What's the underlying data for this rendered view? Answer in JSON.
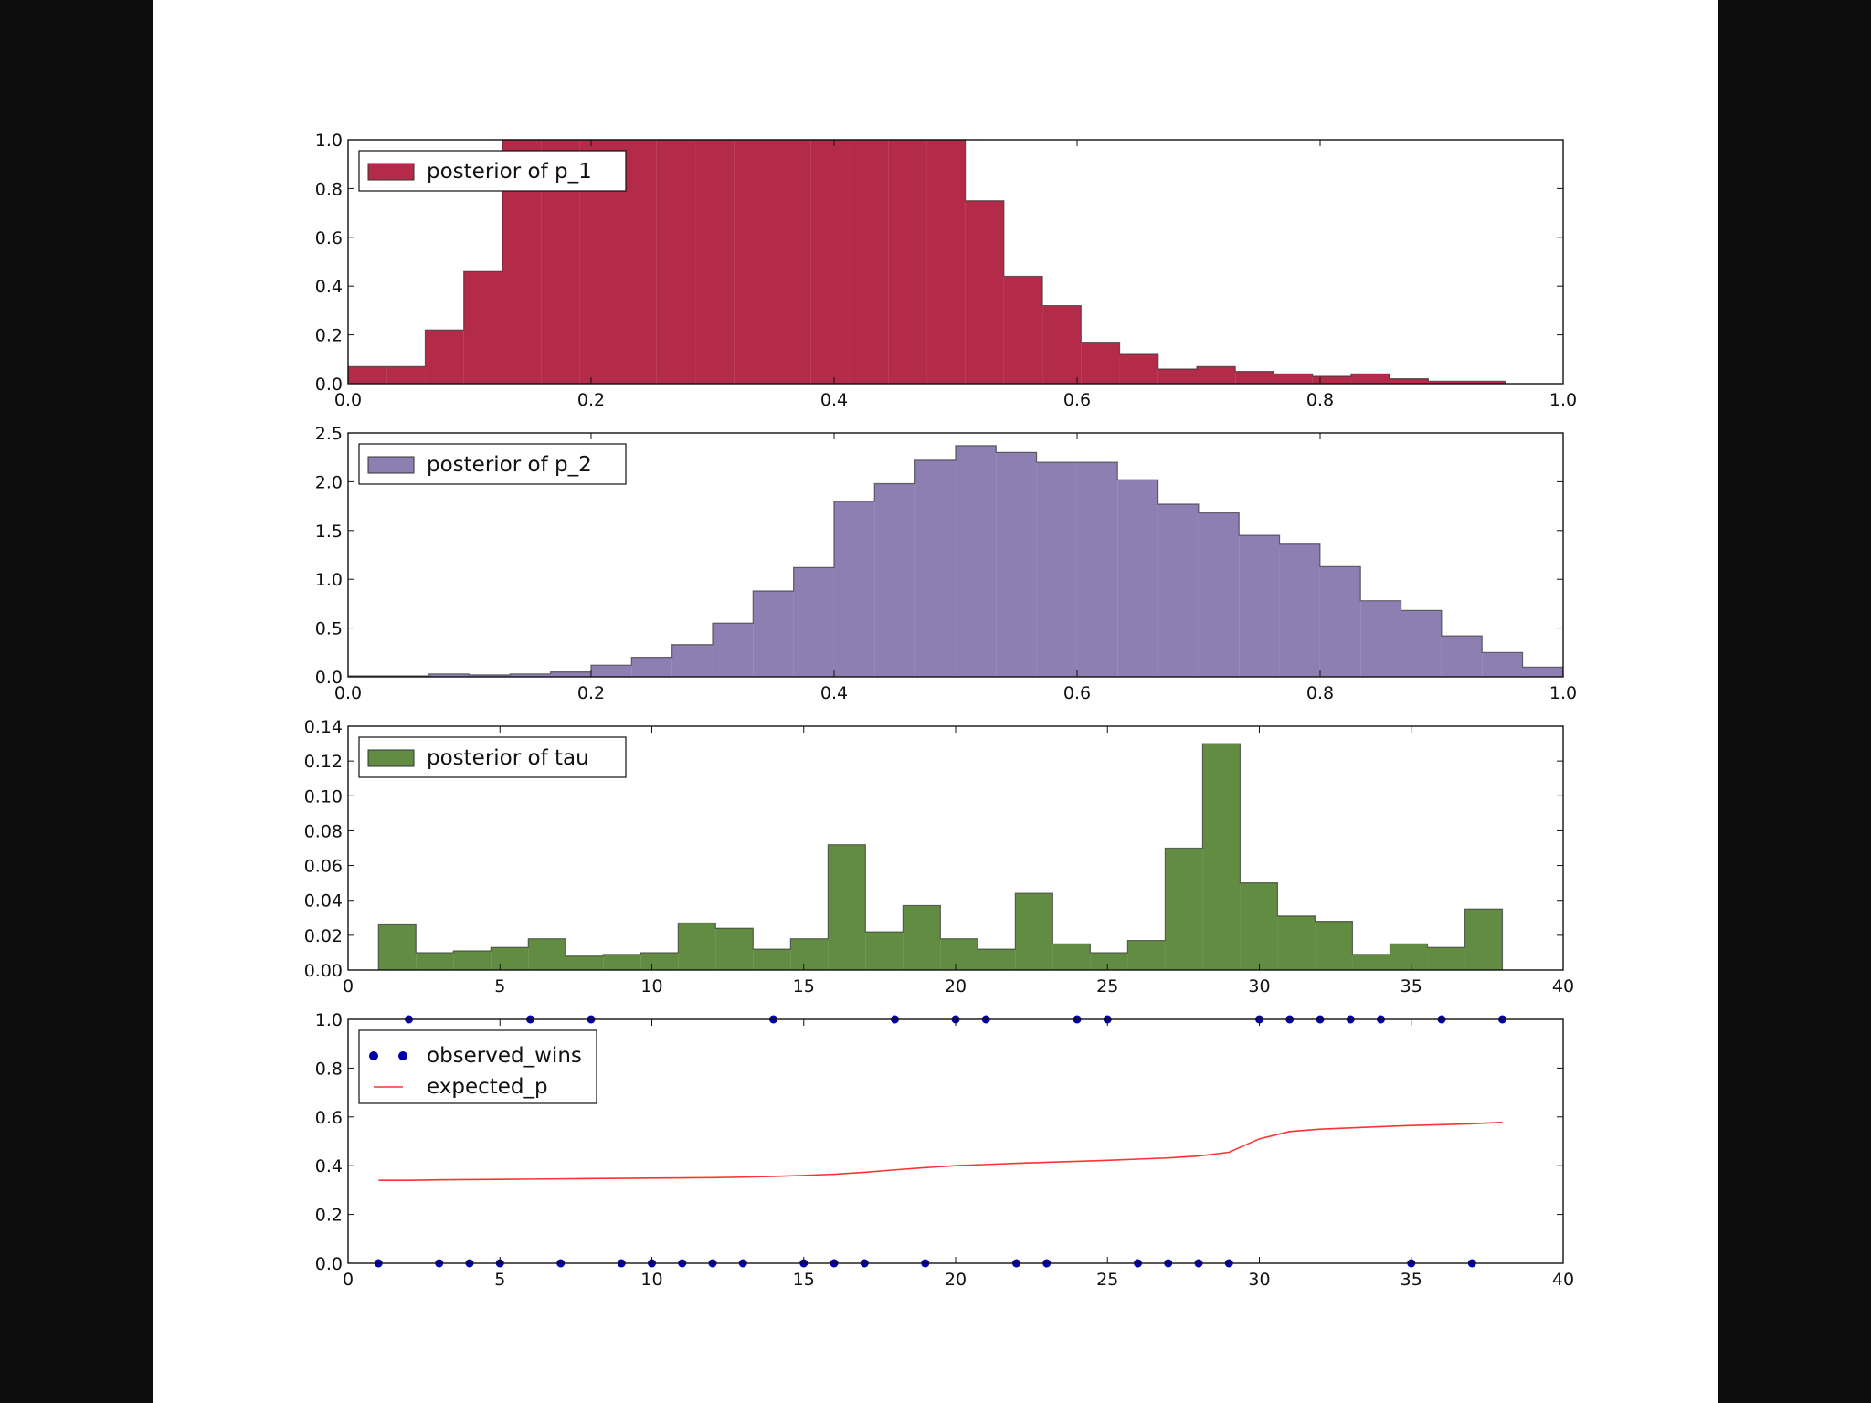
{
  "figure": {
    "background": "#ffffff",
    "frame_background": "#0d0d0d"
  },
  "chart_data": [
    {
      "type": "bar",
      "name": "p1",
      "legend": "posterior of p_1",
      "color": "#A60628",
      "bin_edges_start": 0.0,
      "bin_width": 0.03175,
      "values": [
        0.07,
        0.07,
        0.22,
        0.46,
        1.0,
        1.0,
        1.0,
        1.0,
        1.0,
        1.0,
        1.0,
        1.0,
        1.0,
        1.0,
        1.0,
        1.0,
        0.75,
        0.44,
        0.32,
        0.17,
        0.12,
        0.06,
        0.07,
        0.05,
        0.04,
        0.03,
        0.04,
        0.02,
        0.01,
        0.01
      ],
      "xlim": [
        0.0,
        1.0
      ],
      "ylim": [
        0.0,
        1.0
      ],
      "xticks": [
        "0.0",
        "0.2",
        "0.4",
        "0.6",
        "0.8",
        "1.0"
      ],
      "yticks": [
        "0.0",
        "0.2",
        "0.4",
        "0.6",
        "0.8",
        "1.0"
      ],
      "xtick_values": [
        0.0,
        0.2,
        0.4,
        0.6,
        0.8,
        1.0
      ],
      "ytick_values": [
        0.0,
        0.2,
        0.4,
        0.6,
        0.8,
        1.0
      ],
      "legend_position": "upper left"
    },
    {
      "type": "bar",
      "name": "p2",
      "legend": "posterior of p_2",
      "color": "#7A68A6",
      "bin_edges_start": 0.0,
      "bin_width": 0.03333,
      "values": [
        0.01,
        0.01,
        0.03,
        0.02,
        0.03,
        0.05,
        0.12,
        0.2,
        0.33,
        0.55,
        0.88,
        1.12,
        1.8,
        1.98,
        2.22,
        2.37,
        2.3,
        2.2,
        2.2,
        2.02,
        1.77,
        1.68,
        1.45,
        1.36,
        1.13,
        0.78,
        0.68,
        0.42,
        0.25,
        0.1
      ],
      "xlim": [
        0.0,
        1.0
      ],
      "ylim": [
        0.0,
        2.5
      ],
      "xticks": [
        "0.0",
        "0.2",
        "0.4",
        "0.6",
        "0.8",
        "1.0"
      ],
      "yticks": [
        "0.0",
        "0.5",
        "1.0",
        "1.5",
        "2.0",
        "2.5"
      ],
      "xtick_values": [
        0.0,
        0.2,
        0.4,
        0.6,
        0.8,
        1.0
      ],
      "ytick_values": [
        0.0,
        0.5,
        1.0,
        1.5,
        2.0,
        2.5
      ],
      "legend_position": "upper left"
    },
    {
      "type": "bar",
      "name": "tau",
      "legend": "posterior of tau",
      "color": "#467821",
      "bin_edges_start": 1.0,
      "bin_width": 1.2333,
      "values": [
        0.026,
        0.01,
        0.011,
        0.013,
        0.018,
        0.008,
        0.009,
        0.01,
        0.027,
        0.024,
        0.012,
        0.018,
        0.072,
        0.022,
        0.037,
        0.018,
        0.012,
        0.044,
        0.015,
        0.01,
        0.017,
        0.07,
        0.13,
        0.05,
        0.031,
        0.028,
        0.009,
        0.015,
        0.013,
        0.035
      ],
      "xlim": [
        0,
        40
      ],
      "ylim": [
        0.0,
        0.14
      ],
      "xticks": [
        "0",
        "5",
        "10",
        "15",
        "20",
        "25",
        "30",
        "35",
        "40"
      ],
      "yticks": [
        "0.00",
        "0.02",
        "0.04",
        "0.06",
        "0.08",
        "0.10",
        "0.12",
        "0.14"
      ],
      "xtick_values": [
        0,
        5,
        10,
        15,
        20,
        25,
        30,
        35,
        40
      ],
      "ytick_values": [
        0.0,
        0.02,
        0.04,
        0.06,
        0.08,
        0.1,
        0.12,
        0.14
      ],
      "legend_position": "upper left"
    },
    {
      "type": "scatter",
      "name": "wins",
      "xlim": [
        0,
        40
      ],
      "ylim": [
        0.0,
        1.0
      ],
      "xticks": [
        "0",
        "5",
        "10",
        "15",
        "20",
        "25",
        "30",
        "35",
        "40"
      ],
      "yticks": [
        "0.0",
        "0.2",
        "0.4",
        "0.6",
        "0.8",
        "1.0"
      ],
      "xtick_values": [
        0,
        5,
        10,
        15,
        20,
        25,
        30,
        35,
        40
      ],
      "ytick_values": [
        0.0,
        0.2,
        0.4,
        0.6,
        0.8,
        1.0
      ],
      "legend_position": "upper left",
      "series": [
        {
          "name": "observed_wins",
          "kind": "points",
          "color": "#0000aa",
          "x": [
            1,
            2,
            3,
            4,
            5,
            6,
            7,
            8,
            9,
            10,
            11,
            12,
            13,
            14,
            15,
            16,
            17,
            18,
            19,
            20,
            21,
            22,
            23,
            24,
            25,
            26,
            27,
            28,
            29,
            30,
            31,
            32,
            33,
            34,
            35,
            36,
            37,
            38
          ],
          "y": [
            0,
            1,
            0,
            0,
            0,
            1,
            0,
            1,
            0,
            0,
            0,
            0,
            0,
            1,
            0,
            0,
            0,
            1,
            0,
            1,
            1,
            0,
            0,
            1,
            1,
            0,
            0,
            0,
            0,
            1,
            1,
            1,
            1,
            1,
            0,
            1,
            0,
            1
          ]
        },
        {
          "name": "expected_p",
          "kind": "line",
          "color": "#ff3333",
          "x": [
            1,
            2,
            3,
            4,
            5,
            6,
            7,
            8,
            9,
            10,
            11,
            12,
            13,
            14,
            15,
            16,
            17,
            18,
            19,
            20,
            21,
            22,
            23,
            24,
            25,
            26,
            27,
            28,
            29,
            30,
            31,
            32,
            33,
            34,
            35,
            36,
            37,
            38
          ],
          "y": [
            0.34,
            0.34,
            0.342,
            0.343,
            0.344,
            0.345,
            0.346,
            0.347,
            0.348,
            0.349,
            0.35,
            0.351,
            0.353,
            0.356,
            0.36,
            0.365,
            0.373,
            0.383,
            0.392,
            0.4,
            0.405,
            0.41,
            0.414,
            0.418,
            0.422,
            0.427,
            0.432,
            0.44,
            0.455,
            0.51,
            0.54,
            0.55,
            0.555,
            0.56,
            0.565,
            0.568,
            0.572,
            0.578
          ]
        }
      ]
    }
  ]
}
